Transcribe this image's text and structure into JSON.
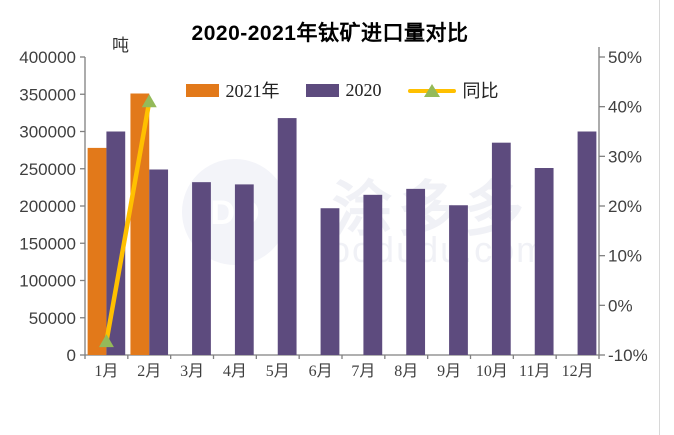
{
  "title": "2020-2021年钛矿进口量对比",
  "unit_label": "吨",
  "watermark": {
    "logo_text": "DD",
    "brand_text": "涂多多",
    "domain_text": "oodudu.com"
  },
  "colors": {
    "bar_2021": "#E2791A",
    "bar_2020": "#5D4B7E",
    "yoy_line": "#FFC000",
    "yoy_marker": "#94BA59",
    "axis_line": "#808080",
    "tick_text": "#3F3F3F"
  },
  "chart_data": {
    "type": "bar",
    "subtype": "combo bar + line (secondary axis)",
    "title": "2020-2021年钛矿进口量对比",
    "categories": [
      "1月",
      "2月",
      "3月",
      "4月",
      "5月",
      "6月",
      "7月",
      "8月",
      "9月",
      "10月",
      "11月",
      "12月"
    ],
    "series": [
      {
        "name": "2021年",
        "type": "bar",
        "axis": "left",
        "color": "#E2791A",
        "values": [
          278000,
          351000,
          null,
          null,
          null,
          null,
          null,
          null,
          null,
          null,
          null,
          null
        ]
      },
      {
        "name": "2020",
        "type": "bar",
        "axis": "left",
        "color": "#5D4B7E",
        "values": [
          300000,
          249000,
          232000,
          229000,
          318000,
          197000,
          215000,
          223000,
          201000,
          285000,
          251000,
          300000
        ]
      },
      {
        "name": "同比",
        "type": "line",
        "axis": "right",
        "color": "#FFC000",
        "marker": "triangle-up",
        "marker_color": "#94BA59",
        "values": [
          -7.3,
          41,
          null,
          null,
          null,
          null,
          null,
          null,
          null,
          null,
          null,
          null
        ]
      }
    ],
    "left_axis": {
      "unit": "吨",
      "min": 0,
      "max": 400000,
      "step": 50000,
      "tick_labels": [
        "0",
        "50000",
        "100000",
        "150000",
        "200000",
        "250000",
        "300000",
        "350000",
        "400000"
      ]
    },
    "right_axis": {
      "min": -10,
      "max": 50,
      "step": 10,
      "tick_labels": [
        "-10%",
        "0%",
        "10%",
        "20%",
        "30%",
        "40%",
        "50%"
      ]
    },
    "legend_position": "top",
    "grid": "off"
  }
}
